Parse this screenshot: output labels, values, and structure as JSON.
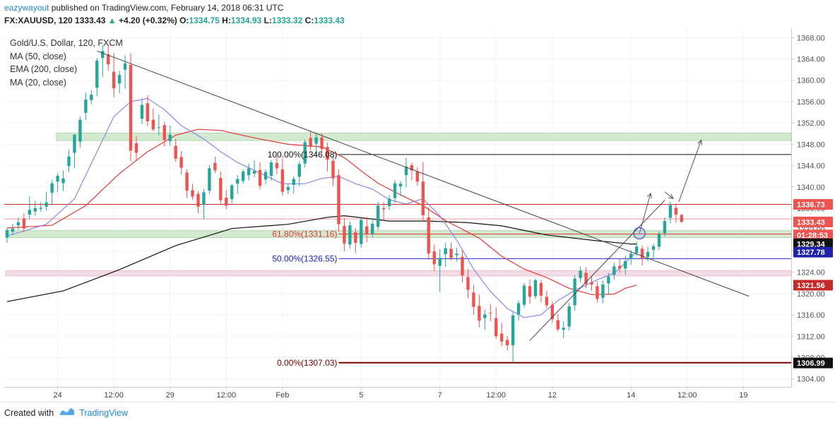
{
  "header": {
    "user": "eazywayout",
    "published_text": "published on TradingView.com, February 14, 2018 06:31 UTC",
    "symbol": "FX:XAUUSD, 120",
    "last": "1333.43",
    "change_arrow": "▲",
    "change": "+4.20 (+0.32%)",
    "o_label": "O:",
    "o_value": "1334.75",
    "h_label": "H:",
    "h_value": "1334.93",
    "l_label": "L:",
    "l_value": "1333.32",
    "c_label": "C:",
    "c_value": "1333.43"
  },
  "legend": {
    "title": "Gold/U.S. Dollar, 120, FXCM",
    "ma50": "MA (50, close)",
    "ema200": "EMA (200, close)",
    "ma20": "MA (20, close)"
  },
  "footer": {
    "created_with": "Created with",
    "brand": "TradingView"
  },
  "colors": {
    "up": "#26a69a",
    "down": "#ef5350",
    "ma50": "#111111",
    "ema200": "#e53935",
    "ma20": "#8c86f0",
    "zone_green": "#d3ead1",
    "zone_pink": "#f4dce6",
    "axis_text": "#555555"
  },
  "chart_data": {
    "type": "candlestick",
    "y_axis": {
      "ylim": [
        1302.5,
        1369.5
      ],
      "ticks": [
        1304,
        1308,
        1312,
        1316,
        1320,
        1324,
        1328,
        1332,
        1336,
        1340,
        1344,
        1348,
        1352,
        1356,
        1360,
        1364,
        1368
      ],
      "tick_labels": [
        "1304.00",
        "1308.00",
        "1312.00",
        "1316.00",
        "1320.00",
        "1324.00",
        "1328.00",
        "1332.00",
        "1336.00",
        "1340.00",
        "1344.00",
        "1348.00",
        "1352.00",
        "1356.00",
        "1360.00",
        "1364.00",
        "1368.00"
      ]
    },
    "x_axis": {
      "bars": 140,
      "tick_labels": [
        {
          "bar": 9,
          "label": "24"
        },
        {
          "bar": 19,
          "label": "12:00"
        },
        {
          "bar": 29,
          "label": "29"
        },
        {
          "bar": 39,
          "label": "12:00"
        },
        {
          "bar": 49,
          "label": "Feb"
        },
        {
          "bar": 63,
          "label": "5"
        },
        {
          "bar": 77,
          "label": "7"
        },
        {
          "bar": 87,
          "label": "12:00"
        },
        {
          "bar": 97,
          "label": "12"
        },
        {
          "bar": 111,
          "label": "14"
        },
        {
          "bar": 121,
          "label": "12:00"
        },
        {
          "bar": 131,
          "label": "19"
        }
      ]
    },
    "price_labels": [
      {
        "value": 1336.73,
        "label": "1336.73",
        "bg": "#ef5350",
        "fg": "#ffffff"
      },
      {
        "value": 1333.43,
        "label": "1333.43",
        "bg": "#ef5350",
        "fg": "#ffffff"
      },
      {
        "value": 1331.0,
        "label": "01:28:53",
        "bg": "#ef5350",
        "fg": "#ffffff"
      },
      {
        "value": 1329.34,
        "label": "1329.34",
        "bg": "#111111",
        "fg": "#ffffff"
      },
      {
        "value": 1327.78,
        "label": "1327.78",
        "bg": "#1e22aa",
        "fg": "#ffffff"
      },
      {
        "value": 1321.56,
        "label": "1321.56",
        "bg": "#c62828",
        "fg": "#ffffff"
      },
      {
        "value": 1306.99,
        "label": "1306.99",
        "bg": "#111111",
        "fg": "#ffffff"
      }
    ],
    "fib_levels": [
      {
        "value": 1346.08,
        "label": "100.00%(1346.08)",
        "color": "#111111",
        "start_bar": 59
      },
      {
        "value": 1331.16,
        "label": "61.80%(1331.16)",
        "color": "#e53935",
        "start_bar": 59
      },
      {
        "value": 1326.55,
        "label": "50.00%(1326.55)",
        "color": "#1e22cc",
        "start_bar": 59
      },
      {
        "value": 1307.03,
        "label": "0.00%(1307.03)",
        "color": "#7a0000",
        "start_bar": 59
      }
    ],
    "horizontal_lines": [
      {
        "value": 1336.73,
        "color": "#c62828",
        "from_bar": 0
      },
      {
        "value": 1334.0,
        "color": "#ef9a9a",
        "from_bar": 0
      }
    ],
    "zones": [
      {
        "y1": 1348.7,
        "y2": 1350.1,
        "from_bar": 9,
        "color": "green"
      },
      {
        "y1": 1330.5,
        "y2": 1331.8,
        "from_bar": 0,
        "color": "green"
      },
      {
        "y1": 1323.3,
        "y2": 1324.3,
        "from_bar": 0,
        "color": "pink"
      }
    ],
    "trendlines": [
      {
        "x1": 16,
        "y1": 1365.5,
        "x2": 132,
        "y2": 1319.5
      },
      {
        "x1": 93,
        "y1": 1311.2,
        "x2": 117,
        "y2": 1337.5
      }
    ],
    "arrows": [
      {
        "points": [
          [
            112.5,
            1331.3
          ],
          [
            114.5,
            1338.8
          ]
        ]
      },
      {
        "points": [
          [
            117,
            1339.1
          ],
          [
            118.5,
            1337.8
          ]
        ]
      },
      {
        "points": [
          [
            119.5,
            1337.2
          ],
          [
            123.5,
            1348.8
          ]
        ]
      }
    ],
    "circle": {
      "bar": 112.5,
      "value": 1331.3
    },
    "ohlc": [
      [
        1330.5,
        1332.3,
        1329.5,
        1331.9
      ],
      [
        1331.6,
        1333.1,
        1331.0,
        1332.2
      ],
      [
        1332.8,
        1334.2,
        1332.0,
        1333.4
      ],
      [
        1334.1,
        1335.0,
        1331.5,
        1332.2
      ],
      [
        1334.8,
        1338.2,
        1334.0,
        1335.7
      ],
      [
        1335.4,
        1337.4,
        1334.6,
        1336.0
      ],
      [
        1335.9,
        1337.2,
        1335.3,
        1336.1
      ],
      [
        1336.3,
        1339.1,
        1335.6,
        1337.1
      ],
      [
        1338.9,
        1341.3,
        1336.7,
        1340.7
      ],
      [
        1341.0,
        1342.6,
        1339.0,
        1342.1
      ],
      [
        1340.7,
        1343.1,
        1339.2,
        1341.6
      ],
      [
        1343.9,
        1346.9,
        1342.8,
        1345.7
      ],
      [
        1346.4,
        1349.9,
        1343.5,
        1349.8
      ],
      [
        1348.5,
        1353.2,
        1347.4,
        1352.6
      ],
      [
        1353.9,
        1357.7,
        1352.6,
        1356.4
      ],
      [
        1356.3,
        1358.2,
        1355.5,
        1357.3
      ],
      [
        1358.6,
        1364.2,
        1357.0,
        1363.7
      ],
      [
        1364.2,
        1366.6,
        1360.6,
        1365.5
      ],
      [
        1364.9,
        1366.6,
        1361.8,
        1363.0
      ],
      [
        1361.6,
        1365.1,
        1356.8,
        1358.5
      ],
      [
        1359.4,
        1361.8,
        1357.6,
        1361.0
      ],
      [
        1362.0,
        1364.7,
        1358.4,
        1363.2
      ],
      [
        1362.9,
        1365.1,
        1344.8,
        1346.8
      ],
      [
        1348.2,
        1349.5,
        1345.0,
        1346.4
      ],
      [
        1352.8,
        1356.6,
        1351.8,
        1355.4
      ],
      [
        1355.7,
        1357.2,
        1351.4,
        1352.3
      ],
      [
        1352.6,
        1354.7,
        1350.4,
        1350.8
      ],
      [
        1351.2,
        1353.6,
        1349.7,
        1351.2
      ],
      [
        1351.6,
        1352.2,
        1347.6,
        1348.8
      ],
      [
        1348.6,
        1351.5,
        1347.7,
        1349.8
      ],
      [
        1347.7,
        1349.0,
        1344.7,
        1345.3
      ],
      [
        1345.6,
        1346.7,
        1342.3,
        1343.6
      ],
      [
        1342.7,
        1343.3,
        1337.9,
        1339.3
      ],
      [
        1339.4,
        1340.6,
        1337.6,
        1338.2
      ],
      [
        1338.7,
        1339.2,
        1335.1,
        1336.3
      ],
      [
        1336.7,
        1339.6,
        1334.0,
        1339.0
      ],
      [
        1339.3,
        1344.1,
        1338.7,
        1343.5
      ],
      [
        1344.5,
        1345.7,
        1342.6,
        1343.1
      ],
      [
        1341.7,
        1342.9,
        1336.7,
        1337.5
      ],
      [
        1338.0,
        1339.4,
        1335.8,
        1336.5
      ],
      [
        1337.7,
        1340.6,
        1336.9,
        1340.3
      ],
      [
        1340.6,
        1342.2,
        1338.7,
        1341.5
      ],
      [
        1341.1,
        1343.3,
        1340.6,
        1342.9
      ],
      [
        1342.2,
        1344.4,
        1341.2,
        1343.5
      ],
      [
        1342.5,
        1345.0,
        1341.8,
        1343.0
      ],
      [
        1343.2,
        1344.6,
        1339.5,
        1340.2
      ],
      [
        1341.4,
        1343.3,
        1340.5,
        1342.8
      ],
      [
        1342.1,
        1345.0,
        1341.2,
        1344.6
      ],
      [
        1344.5,
        1345.7,
        1342.4,
        1343.5
      ],
      [
        1343.3,
        1345.3,
        1338.4,
        1339.1
      ],
      [
        1339.4,
        1340.6,
        1338.6,
        1340.0
      ],
      [
        1340.4,
        1342.0,
        1338.7,
        1341.5
      ],
      [
        1341.9,
        1344.8,
        1340.1,
        1344.3
      ],
      [
        1344.4,
        1348.9,
        1343.6,
        1348.4
      ],
      [
        1349.2,
        1350.6,
        1346.8,
        1347.5
      ],
      [
        1348.1,
        1350.2,
        1345.9,
        1349.3
      ],
      [
        1349.3,
        1350.1,
        1346.3,
        1347.1
      ],
      [
        1347.5,
        1348.3,
        1342.9,
        1345.1
      ],
      [
        1344.9,
        1345.6,
        1340.2,
        1341.6
      ],
      [
        1342.2,
        1343.3,
        1331.6,
        1333.0
      ],
      [
        1332.7,
        1334.2,
        1327.9,
        1329.4
      ],
      [
        1329.2,
        1333.5,
        1328.4,
        1332.8
      ],
      [
        1331.5,
        1332.3,
        1327.6,
        1329.5
      ],
      [
        1329.3,
        1334.4,
        1328.6,
        1333.8
      ],
      [
        1332.6,
        1334.4,
        1329.6,
        1331.1
      ],
      [
        1331.2,
        1333.8,
        1330.6,
        1333.1
      ],
      [
        1332.5,
        1337.2,
        1331.9,
        1336.5
      ],
      [
        1336.0,
        1337.2,
        1333.9,
        1335.8
      ],
      [
        1336.4,
        1338.5,
        1335.6,
        1337.8
      ],
      [
        1337.9,
        1341.3,
        1337.0,
        1340.7
      ],
      [
        1340.1,
        1341.1,
        1338.3,
        1340.6
      ],
      [
        1342.2,
        1345.5,
        1339.9,
        1343.8
      ],
      [
        1344.1,
        1344.6,
        1341.3,
        1343.1
      ],
      [
        1342.9,
        1343.7,
        1340.2,
        1341.0
      ],
      [
        1341.0,
        1344.7,
        1333.4,
        1334.7
      ],
      [
        1334.3,
        1336.2,
        1326.3,
        1327.5
      ],
      [
        1327.9,
        1329.2,
        1324.2,
        1325.5
      ],
      [
        1325.2,
        1328.3,
        1320.3,
        1326.7
      ],
      [
        1327.4,
        1329.6,
        1325.0,
        1328.5
      ],
      [
        1328.4,
        1329.6,
        1326.2,
        1326.7
      ],
      [
        1327.2,
        1328.6,
        1326.0,
        1327.5
      ],
      [
        1326.9,
        1328.2,
        1322.1,
        1323.4
      ],
      [
        1323.1,
        1324.6,
        1319.1,
        1320.7
      ],
      [
        1320.2,
        1321.7,
        1316.0,
        1317.5
      ],
      [
        1317.7,
        1319.8,
        1313.7,
        1314.9
      ],
      [
        1315.4,
        1317.0,
        1313.2,
        1316.1
      ],
      [
        1316.4,
        1318.0,
        1314.8,
        1316.3
      ],
      [
        1315.4,
        1317.4,
        1311.5,
        1312.0
      ],
      [
        1312.5,
        1314.5,
        1310.1,
        1311.0
      ],
      [
        1311.3,
        1312.0,
        1309.3,
        1310.3
      ],
      [
        1310.3,
        1316.5,
        1307.0,
        1315.9
      ],
      [
        1316.1,
        1318.7,
        1314.9,
        1318.2
      ],
      [
        1317.9,
        1322.0,
        1317.4,
        1321.5
      ],
      [
        1321.4,
        1322.6,
        1318.1,
        1319.4
      ],
      [
        1319.5,
        1322.8,
        1319.0,
        1322.5
      ],
      [
        1322.0,
        1322.6,
        1318.4,
        1319.6
      ],
      [
        1319.4,
        1320.5,
        1317.2,
        1317.8
      ],
      [
        1317.9,
        1318.6,
        1314.5,
        1315.2
      ],
      [
        1315.0,
        1316.2,
        1312.9,
        1313.3
      ],
      [
        1313.2,
        1314.8,
        1311.6,
        1313.6
      ],
      [
        1313.8,
        1318.3,
        1313.1,
        1317.6
      ],
      [
        1317.8,
        1323.5,
        1316.8,
        1322.8
      ],
      [
        1322.9,
        1325.1,
        1322.1,
        1324.3
      ],
      [
        1323.9,
        1324.9,
        1321.0,
        1321.8
      ],
      [
        1322.1,
        1323.3,
        1320.5,
        1321.7
      ],
      [
        1321.4,
        1322.3,
        1318.3,
        1319.0
      ],
      [
        1319.2,
        1322.4,
        1318.2,
        1321.7
      ],
      [
        1321.9,
        1323.9,
        1319.8,
        1323.2
      ],
      [
        1323.5,
        1325.8,
        1322.6,
        1325.1
      ],
      [
        1325.2,
        1326.6,
        1323.9,
        1324.7
      ],
      [
        1324.7,
        1327.1,
        1323.5,
        1326.1
      ],
      [
        1326.5,
        1328.1,
        1325.4,
        1327.5
      ],
      [
        1327.6,
        1329.8,
        1327.0,
        1328.8
      ],
      [
        1328.4,
        1329.0,
        1325.3,
        1326.5
      ],
      [
        1326.9,
        1328.8,
        1326.0,
        1327.8
      ],
      [
        1328.2,
        1329.4,
        1326.6,
        1328.9
      ],
      [
        1328.8,
        1331.7,
        1328.2,
        1331.1
      ],
      [
        1331.3,
        1334.3,
        1330.7,
        1333.6
      ],
      [
        1334.2,
        1337.2,
        1333.2,
        1336.6
      ],
      [
        1336.1,
        1336.7,
        1333.3,
        1334.8
      ],
      [
        1334.75,
        1334.93,
        1333.32,
        1333.43
      ]
    ],
    "series": [
      {
        "name": "MA (50, close)",
        "color": "#111111",
        "points": [
          [
            0,
            1318.5
          ],
          [
            10,
            1320.5
          ],
          [
            20,
            1324.5
          ],
          [
            30,
            1329.0
          ],
          [
            40,
            1332.2
          ],
          [
            50,
            1333.0
          ],
          [
            57,
            1334.3
          ],
          [
            60,
            1334.6
          ],
          [
            68,
            1333.6
          ],
          [
            75,
            1333.6
          ],
          [
            82,
            1333.3
          ],
          [
            88,
            1332.7
          ],
          [
            96,
            1331.0
          ],
          [
            105,
            1329.9
          ],
          [
            111,
            1329.3
          ],
          [
            112,
            1329.3
          ]
        ]
      },
      {
        "name": "EMA (200, close)",
        "color": "#e53935",
        "points": [
          [
            0,
            1332.3
          ],
          [
            8,
            1332.8
          ],
          [
            14,
            1336.5
          ],
          [
            20,
            1342.5
          ],
          [
            25,
            1346.6
          ],
          [
            30,
            1349.7
          ],
          [
            34,
            1350.8
          ],
          [
            38,
            1350.6
          ],
          [
            44,
            1349.2
          ],
          [
            50,
            1348.0
          ],
          [
            56,
            1347.5
          ],
          [
            60,
            1345.5
          ],
          [
            63,
            1343.0
          ],
          [
            66,
            1340.7
          ],
          [
            70,
            1338.5
          ],
          [
            74,
            1336.5
          ],
          [
            78,
            1333.7
          ],
          [
            84,
            1330.4
          ],
          [
            88,
            1327.0
          ],
          [
            92,
            1324.6
          ],
          [
            96,
            1323.0
          ],
          [
            100,
            1321.0
          ],
          [
            104,
            1319.8
          ],
          [
            108,
            1319.9
          ],
          [
            110,
            1321.0
          ],
          [
            112,
            1321.6
          ]
        ]
      },
      {
        "name": "MA (20, close)",
        "color": "#8c86f0",
        "points": [
          [
            0,
            1330.8
          ],
          [
            7,
            1333.0
          ],
          [
            12,
            1337.8
          ],
          [
            16,
            1346.6
          ],
          [
            19,
            1353.2
          ],
          [
            22,
            1356.0
          ],
          [
            25,
            1356.6
          ],
          [
            28,
            1354.5
          ],
          [
            31,
            1351.5
          ],
          [
            35,
            1349.0
          ],
          [
            38,
            1346.6
          ],
          [
            41,
            1344.6
          ],
          [
            45,
            1342.6
          ],
          [
            49,
            1340.6
          ],
          [
            53,
            1340.6
          ],
          [
            56,
            1341.6
          ],
          [
            59,
            1342.0
          ],
          [
            62,
            1340.6
          ],
          [
            65,
            1339.6
          ],
          [
            68,
            1337.6
          ],
          [
            71,
            1336.8
          ],
          [
            74,
            1337.8
          ],
          [
            77,
            1334.6
          ],
          [
            80,
            1330.0
          ],
          [
            83,
            1324.6
          ],
          [
            86,
            1320.4
          ],
          [
            89,
            1317.2
          ],
          [
            92,
            1315.5
          ],
          [
            95,
            1316.0
          ],
          [
            98,
            1318.7
          ],
          [
            101,
            1320.6
          ],
          [
            105,
            1322.6
          ],
          [
            108,
            1323.8
          ],
          [
            111,
            1326.8
          ],
          [
            112,
            1327.8
          ]
        ]
      }
    ]
  }
}
